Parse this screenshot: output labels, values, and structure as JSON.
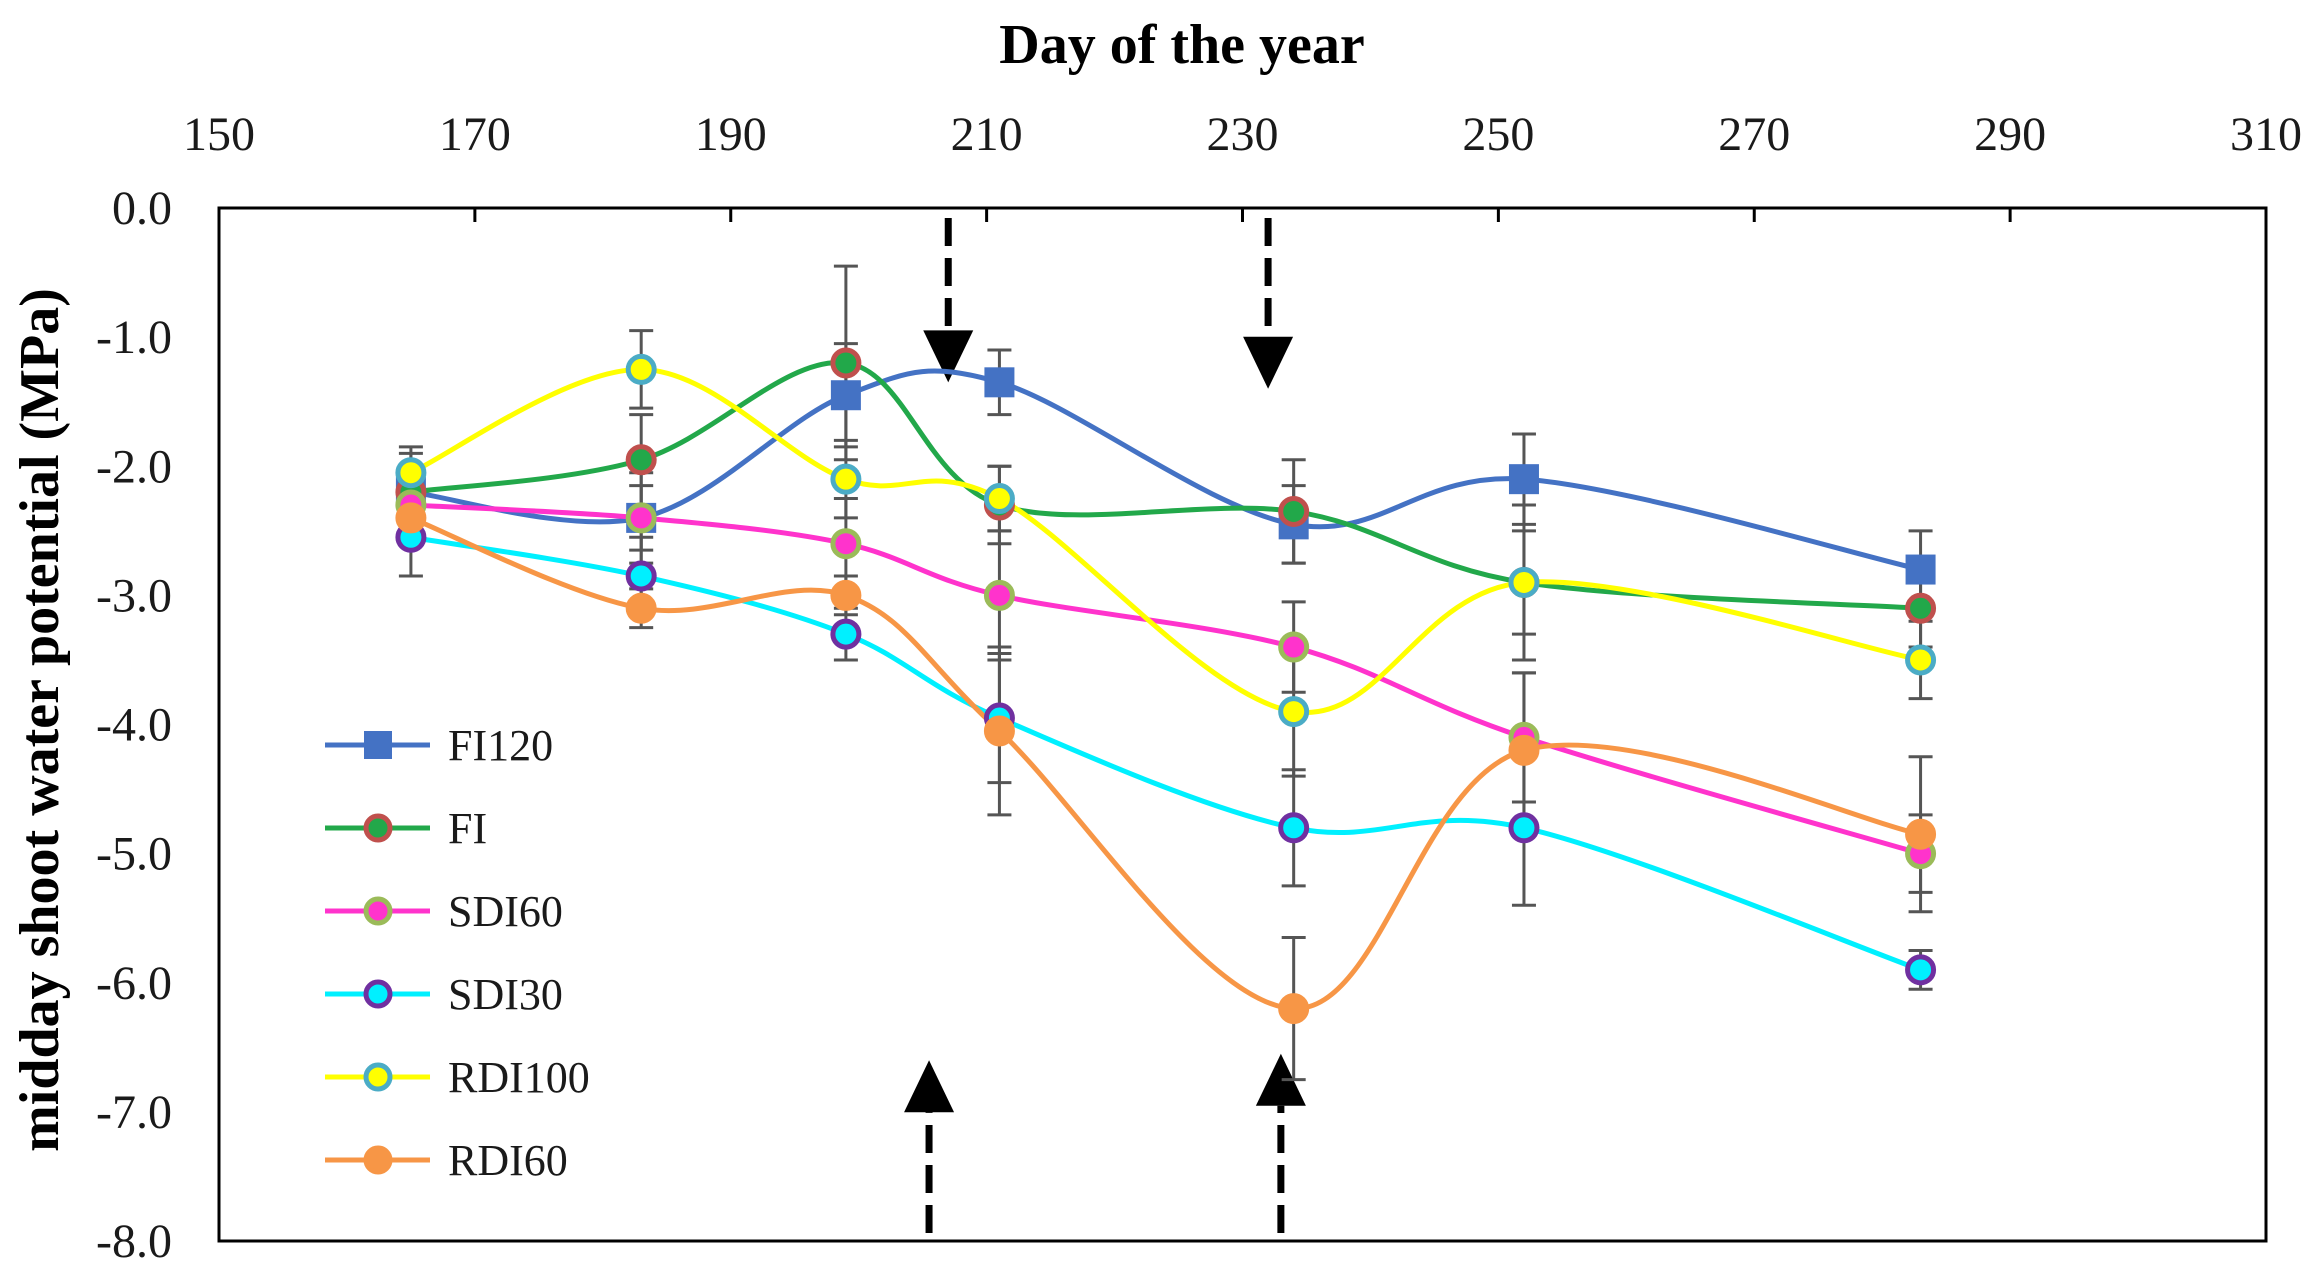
{
  "chart_data": {
    "type": "line",
    "title": "Day of the year",
    "xlabel": "Day of the year",
    "ylabel": "midday shoot water potential (MPa)",
    "xlim": [
      150,
      310
    ],
    "ylim": [
      -8.0,
      0.0
    ],
    "x_ticks": [
      150,
      170,
      190,
      210,
      230,
      250,
      270,
      290,
      310
    ],
    "y_ticks": [
      "0.0",
      "-1.0",
      "-2.0",
      "-3.0",
      "-4.0",
      "-5.0",
      "-6.0",
      "-7.0",
      "-8.0"
    ],
    "x_axis_position": "top",
    "grid": false,
    "legend_position": "lower-left",
    "x": [
      165,
      183,
      199,
      211,
      234,
      252,
      283
    ],
    "series": [
      {
        "name": "FI120",
        "color": "#4472c4",
        "marker": "square",
        "marker_fill": "#4472c4",
        "marker_edge": "#4472c4",
        "values": [
          -2.2,
          -2.4,
          -1.45,
          -1.35,
          -2.45,
          -2.1,
          -2.8
        ],
        "errors": [
          0.2,
          0.25,
          0.4,
          0.25,
          0.3,
          0.35,
          0.3
        ]
      },
      {
        "name": "FI",
        "color": "#22a84a",
        "marker": "circle",
        "marker_fill": "#22a84a",
        "marker_edge": "#c0504d",
        "values": [
          -2.2,
          -1.95,
          -1.2,
          -2.3,
          -2.35,
          -2.9,
          -3.1
        ],
        "errors": [
          0.3,
          0.35,
          0.75,
          0.3,
          0.4,
          0.4,
          0.3
        ]
      },
      {
        "name": "SDI60",
        "color": "#ff33cc",
        "marker": "circle",
        "marker_fill": "#ff33cc",
        "marker_edge": "#9bbb59",
        "values": [
          -2.3,
          -2.4,
          -2.6,
          -3.0,
          -3.4,
          -4.1,
          -5.0
        ],
        "errors": [
          0.25,
          0.35,
          0.35,
          0.5,
          0.35,
          0.5,
          0.3
        ]
      },
      {
        "name": "SDI30",
        "color": "#00f0ff",
        "marker": "circle",
        "marker_fill": "#00f0ff",
        "marker_edge": "#7030a0",
        "values": [
          -2.55,
          -2.85,
          -3.3,
          -3.95,
          -4.8,
          -4.8,
          -5.9
        ],
        "errors": [
          0.3,
          0.3,
          0.2,
          0.5,
          0.45,
          0.6,
          0.15
        ]
      },
      {
        "name": "RDI100",
        "color": "#ffff00",
        "marker": "circle",
        "marker_fill": "#ffff00",
        "marker_edge": "#4bacc6",
        "values": [
          -2.05,
          -1.25,
          -2.1,
          -2.25,
          -3.9,
          -2.9,
          -3.5
        ],
        "errors": [
          0.2,
          0.3,
          0.3,
          0.25,
          0.5,
          0.6,
          0.3
        ]
      },
      {
        "name": "RDI60",
        "color": "#f79646",
        "marker": "circle",
        "marker_fill": "#f79646",
        "marker_edge": "#f79646",
        "values": [
          -2.4,
          -3.1,
          -3.0,
          -4.05,
          -6.2,
          -4.2,
          -4.85
        ],
        "errors": [
          0.2,
          0.15,
          0.15,
          0.65,
          0.55,
          0.6,
          0.6
        ]
      }
    ],
    "annotations": [
      {
        "type": "dashed-arrow",
        "x": 207,
        "direction": "down",
        "from_y": 0.0,
        "to_y": -1.35
      },
      {
        "type": "dashed-arrow",
        "x": 232,
        "direction": "down",
        "from_y": 0.0,
        "to_y": -1.4
      },
      {
        "type": "dashed-arrow",
        "x": 205.5,
        "direction": "up",
        "from_y": -8.0,
        "to_y": -6.6
      },
      {
        "type": "dashed-arrow",
        "x": 233,
        "direction": "up",
        "from_y": -8.0,
        "to_y": -6.55
      }
    ]
  }
}
